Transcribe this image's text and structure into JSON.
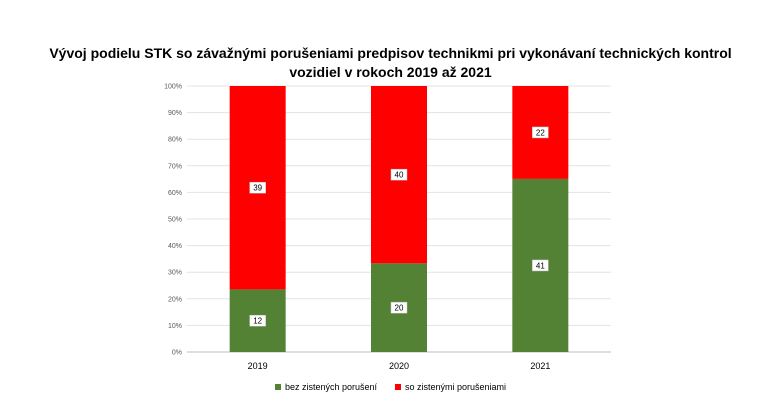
{
  "chart_data": {
    "type": "stacked-bar-100",
    "title_lines": [
      "Vývoj podielu STK so  závažnými porušeniami predpisov technikmi pri vykonávaní technických kontrol",
      "vozidiel v rokoch  2019  až 2021"
    ],
    "categories": [
      "2019",
      "2020",
      "2021"
    ],
    "series": [
      {
        "name": "bez zistených porušení",
        "color": "#548235",
        "values": [
          12,
          20,
          41
        ]
      },
      {
        "name": "so zistenými porušeniami",
        "color": "#ff0000",
        "values": [
          39,
          40,
          22
        ]
      }
    ],
    "y_ticks": [
      "0%",
      "10%",
      "20%",
      "30%",
      "40%",
      "50%",
      "60%",
      "70%",
      "80%",
      "90%",
      "100%"
    ],
    "ylim": [
      0,
      100
    ],
    "grid": true,
    "legend_position": "bottom"
  }
}
